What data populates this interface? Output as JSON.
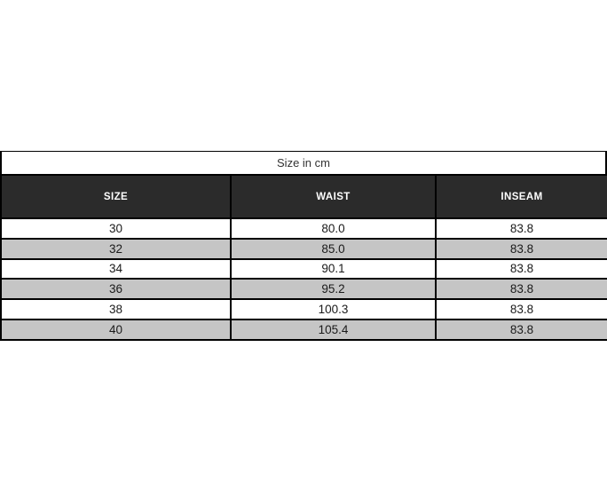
{
  "page": {
    "background": "#ffffff"
  },
  "size_chart": {
    "caption": "Size in cm",
    "columns": [
      "SIZE",
      "WAIST",
      "INSEAM"
    ],
    "rows": [
      [
        "30",
        "80.0",
        "83.8"
      ],
      [
        "32",
        "85.0",
        "83.8"
      ],
      [
        "34",
        "90.1",
        "83.8"
      ],
      [
        "36",
        "95.2",
        "83.8"
      ],
      [
        "38",
        "100.3",
        "83.8"
      ],
      [
        "40",
        "105.4",
        "83.8"
      ]
    ],
    "colors": {
      "header_bg": "#2b2b2b",
      "header_text": "#ffffff",
      "row_bg": "#ffffff",
      "row_alt_bg": "#c5c5c5",
      "border": "#000000",
      "caption_text": "#333333"
    }
  }
}
